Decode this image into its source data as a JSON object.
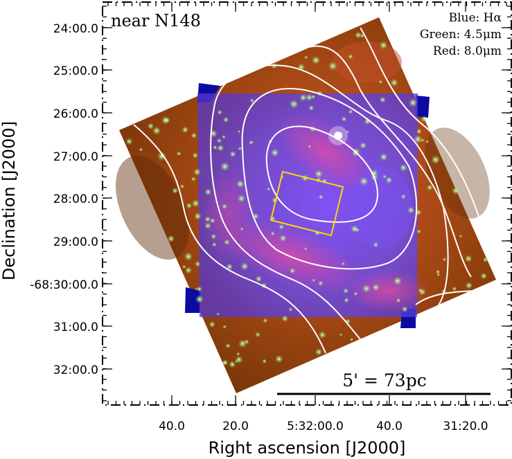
{
  "figure": {
    "field_label": "near N148",
    "legend": {
      "blue": "Blue: Hα",
      "green": "Green: 4.5μm",
      "red": "Red: 8.0μm"
    },
    "scale_bar": "5' = 73pc",
    "x_axis": {
      "label": "Right ascension [J2000]",
      "ticks": [
        "40.0",
        "20.0",
        "5:32:00.0",
        "40.0",
        "31:20.0"
      ]
    },
    "y_axis": {
      "label": "Declination [J2000]",
      "ticks": [
        "24:00.0",
        "25:00.0",
        "26:00.0",
        "27:00.0",
        "28:00.0",
        "29:00.0",
        "-68:30:00.0",
        "31:00.0",
        "32:00.0"
      ]
    },
    "colors": {
      "frame": "#000000",
      "contours": "#ffffff",
      "inner_box": "#ffd700",
      "infrared_bg": "#a34a12",
      "halpha_field": "#5a3ff0",
      "halpha_corners": "#0a0aa0"
    }
  }
}
